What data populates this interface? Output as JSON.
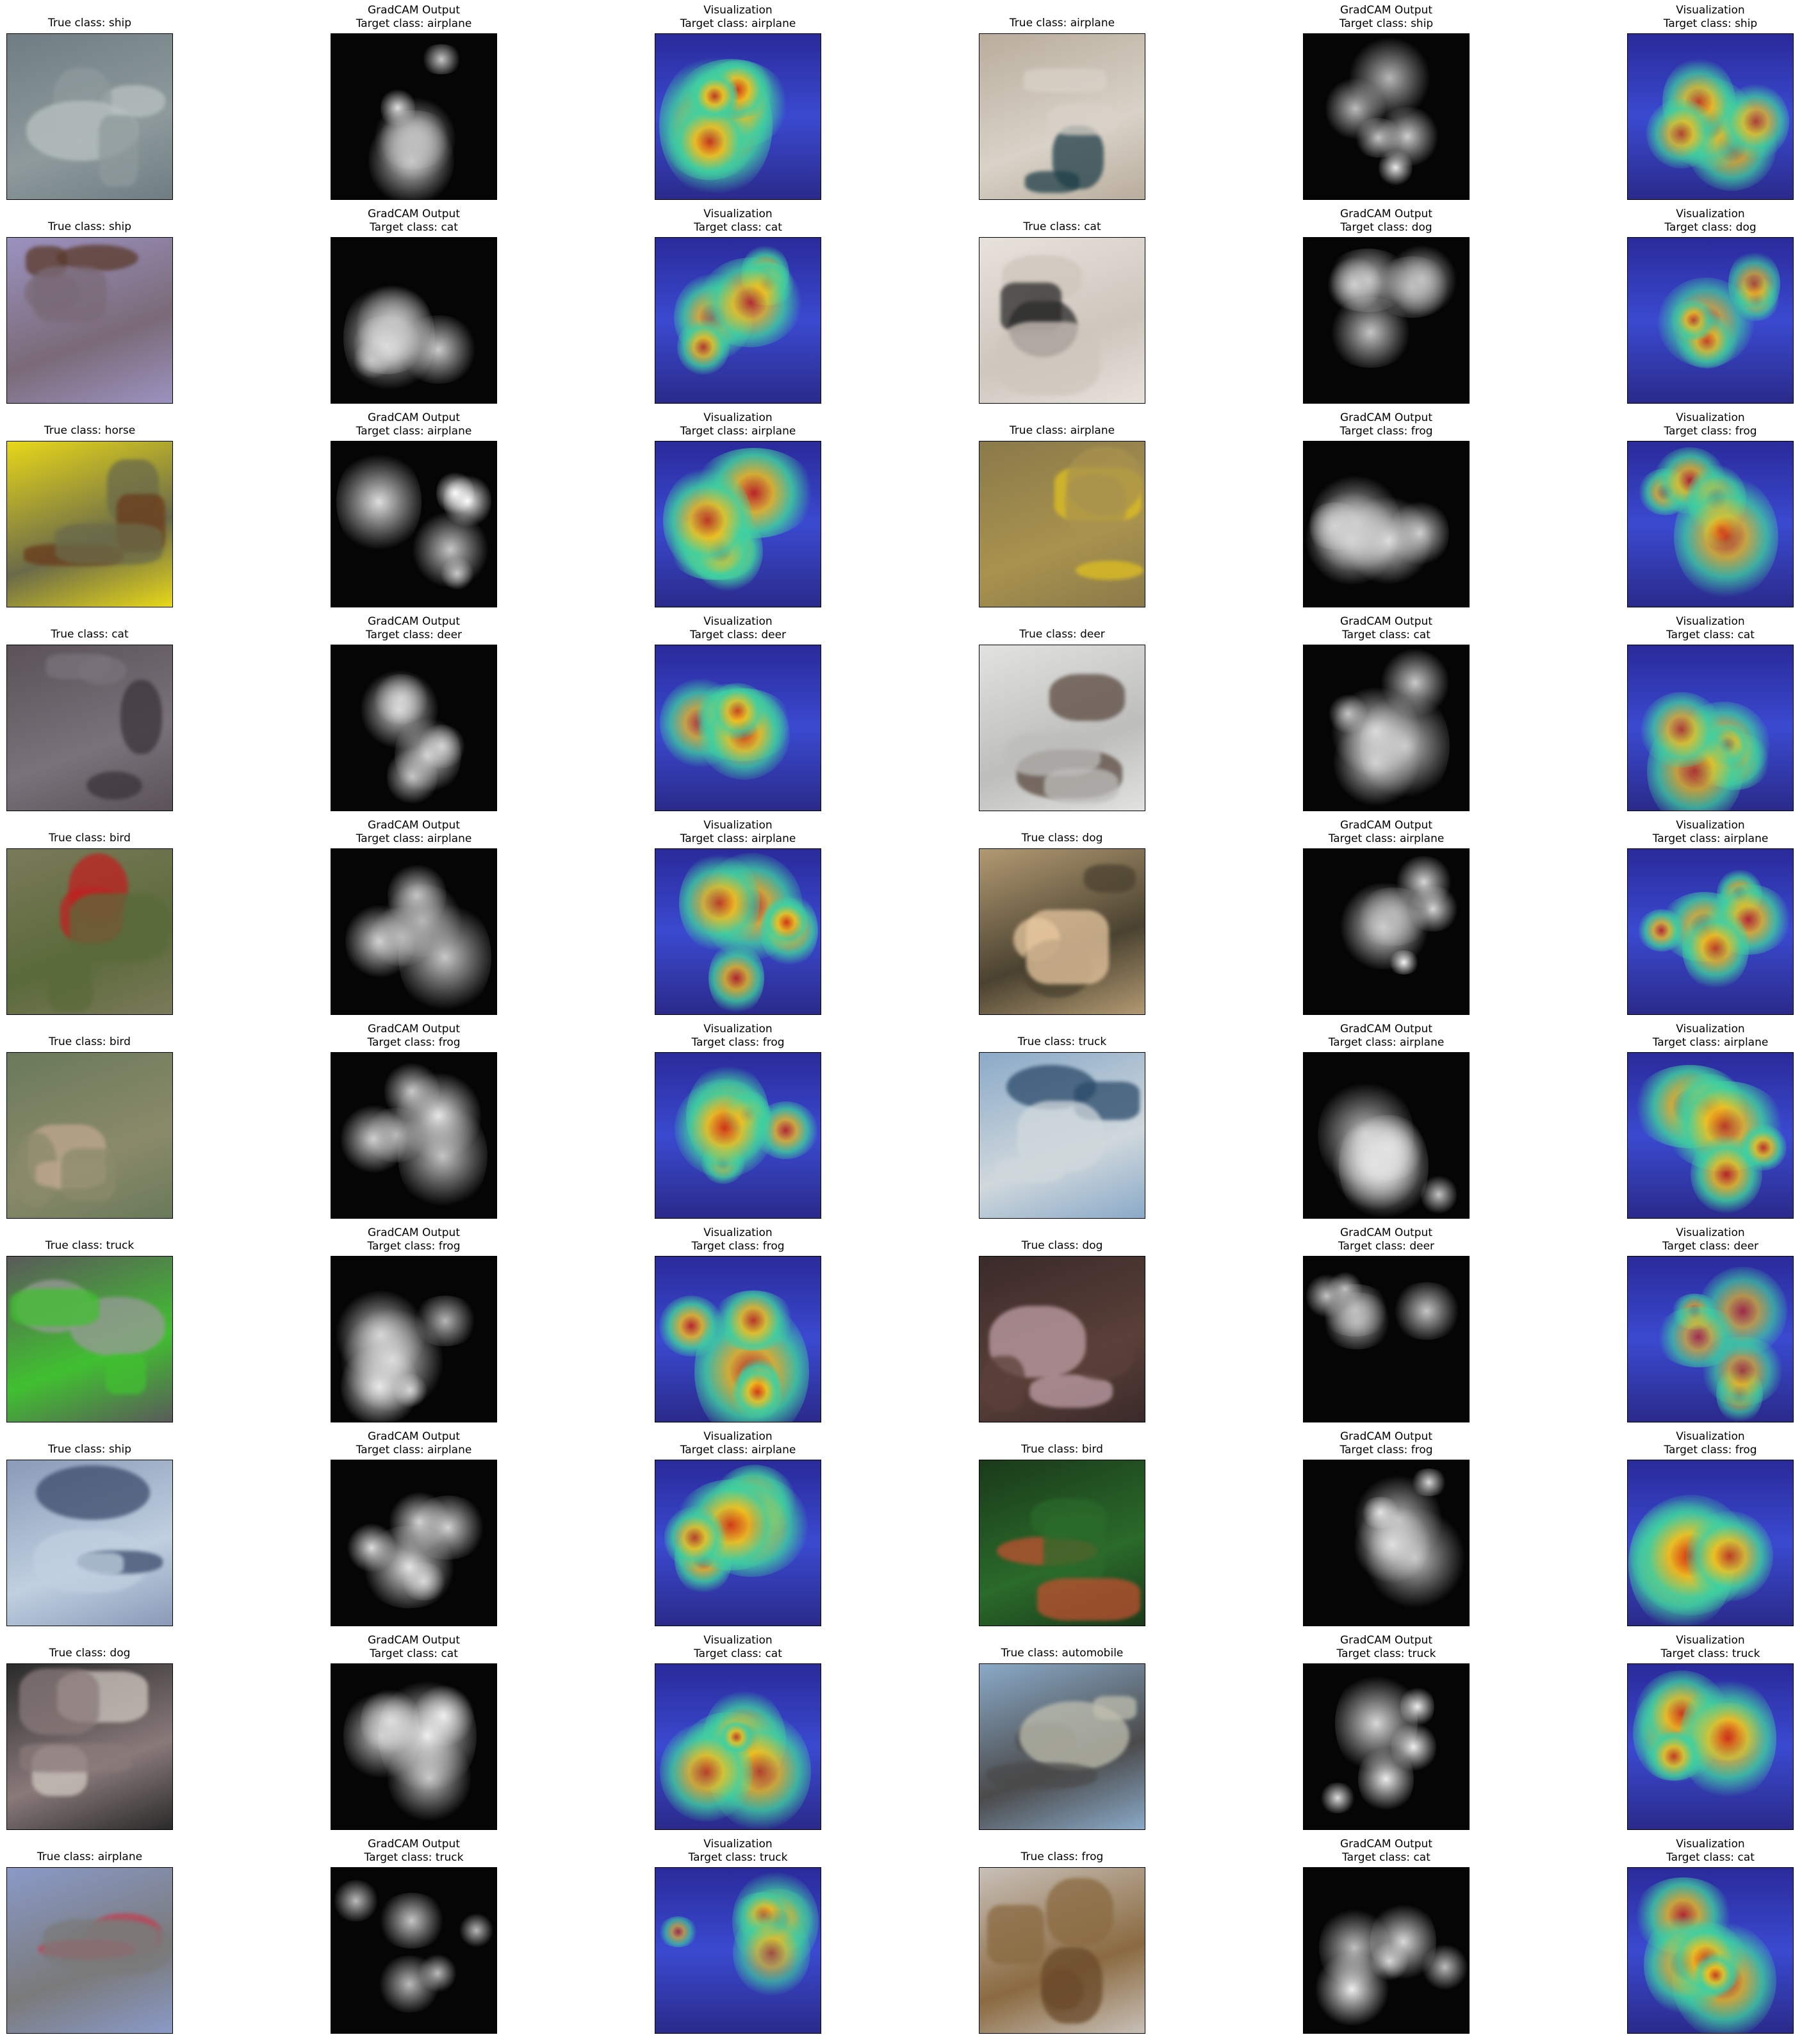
{
  "figure": {
    "rows": [
      [
        {
          "kind": "input",
          "title": "True class: ship",
          "colors": [
            "#6f7d83",
            "#8e9a9c",
            "#b9c2c0"
          ]
        },
        {
          "kind": "gradcam",
          "title": "GradCAM Output",
          "subtitle": "Target class: airplane",
          "intensity": 0.6
        },
        {
          "kind": "visualization",
          "title": "Visualization",
          "subtitle": "Target class: airplane",
          "intensity": 0.7
        },
        {
          "kind": "input",
          "title": "True class: airplane",
          "colors": [
            "#b9ad9c",
            "#d9d2c8",
            "#1f3f49"
          ]
        },
        {
          "kind": "gradcam",
          "title": "GradCAM Output",
          "subtitle": "Target class: ship",
          "intensity": 0.4
        },
        {
          "kind": "visualization",
          "title": "Visualization",
          "subtitle": "Target class: ship",
          "intensity": 0.5
        }
      ],
      [
        {
          "kind": "input",
          "title": "True class: ship",
          "colors": [
            "#9c92c0",
            "#7a6a77",
            "#5a3a2a"
          ]
        },
        {
          "kind": "gradcam",
          "title": "GradCAM Output",
          "subtitle": "Target class: cat",
          "intensity": 0.5
        },
        {
          "kind": "visualization",
          "title": "Visualization",
          "subtitle": "Target class: cat",
          "intensity": 0.6
        },
        {
          "kind": "input",
          "title": "True class: cat",
          "colors": [
            "#e8e2dc",
            "#cfc6bd",
            "#2a2a2a"
          ]
        },
        {
          "kind": "gradcam",
          "title": "GradCAM Output",
          "subtitle": "Target class: dog",
          "intensity": 0.3
        },
        {
          "kind": "visualization",
          "title": "Visualization",
          "subtitle": "Target class: dog",
          "intensity": 0.35
        }
      ],
      [
        {
          "kind": "input",
          "title": "True class: horse",
          "colors": [
            "#e8d818",
            "#6a6a4a",
            "#6a3a1a"
          ]
        },
        {
          "kind": "gradcam",
          "title": "GradCAM Output",
          "subtitle": "Target class: airplane",
          "intensity": 0.55
        },
        {
          "kind": "visualization",
          "title": "Visualization",
          "subtitle": "Target class: airplane",
          "intensity": 0.75
        },
        {
          "kind": "input",
          "title": "True class: airplane",
          "colors": [
            "#8a7a4a",
            "#a8924e",
            "#e0c020"
          ]
        },
        {
          "kind": "gradcam",
          "title": "GradCAM Output",
          "subtitle": "Target class: frog",
          "intensity": 0.4
        },
        {
          "kind": "visualization",
          "title": "Visualization",
          "subtitle": "Target class: frog",
          "intensity": 0.55
        }
      ],
      [
        {
          "kind": "input",
          "title": "True class: cat",
          "colors": [
            "#5a5258",
            "#7a727a",
            "#3a3438"
          ]
        },
        {
          "kind": "gradcam",
          "title": "GradCAM Output",
          "subtitle": "Target class: deer",
          "intensity": 0.35
        },
        {
          "kind": "visualization",
          "title": "Visualization",
          "subtitle": "Target class: deer",
          "intensity": 0.5
        },
        {
          "kind": "input",
          "title": "True class: deer",
          "colors": [
            "#e2e2e0",
            "#bdbdbb",
            "#5a4a40"
          ]
        },
        {
          "kind": "gradcam",
          "title": "GradCAM Output",
          "subtitle": "Target class: cat",
          "intensity": 0.4
        },
        {
          "kind": "visualization",
          "title": "Visualization",
          "subtitle": "Target class: cat",
          "intensity": 0.5
        }
      ],
      [
        {
          "kind": "input",
          "title": "True class: bird",
          "colors": [
            "#7a7a5a",
            "#5a6a3a",
            "#c02020"
          ]
        },
        {
          "kind": "gradcam",
          "title": "GradCAM Output",
          "subtitle": "Target class: airplane",
          "intensity": 0.45
        },
        {
          "kind": "visualization",
          "title": "Visualization",
          "subtitle": "Target class: airplane",
          "intensity": 0.6
        },
        {
          "kind": "input",
          "title": "True class: dog",
          "colors": [
            "#b29a72",
            "#4a4230",
            "#e8c8a0"
          ]
        },
        {
          "kind": "gradcam",
          "title": "GradCAM Output",
          "subtitle": "Target class: airplane",
          "intensity": 0.5
        },
        {
          "kind": "visualization",
          "title": "Visualization",
          "subtitle": "Target class: airplane",
          "intensity": 0.6
        }
      ],
      [
        {
          "kind": "input",
          "title": "True class: bird",
          "colors": [
            "#6a7a5a",
            "#8a8a6a",
            "#c0a890"
          ]
        },
        {
          "kind": "gradcam",
          "title": "GradCAM Output",
          "subtitle": "Target class: frog",
          "intensity": 0.45
        },
        {
          "kind": "visualization",
          "title": "Visualization",
          "subtitle": "Target class: frog",
          "intensity": 0.6
        },
        {
          "kind": "input",
          "title": "True class: truck",
          "colors": [
            "#8aaac8",
            "#d0d8dc",
            "#2a4a6a"
          ]
        },
        {
          "kind": "gradcam",
          "title": "GradCAM Output",
          "subtitle": "Target class: airplane",
          "intensity": 0.6
        },
        {
          "kind": "visualization",
          "title": "Visualization",
          "subtitle": "Target class: airplane",
          "intensity": 0.7
        }
      ],
      [
        {
          "kind": "input",
          "title": "True class: truck",
          "colors": [
            "#5a5a5a",
            "#40c030",
            "#9a9a9a"
          ]
        },
        {
          "kind": "gradcam",
          "title": "GradCAM Output",
          "subtitle": "Target class: frog",
          "intensity": 0.6
        },
        {
          "kind": "visualization",
          "title": "Visualization",
          "subtitle": "Target class: frog",
          "intensity": 0.7
        },
        {
          "kind": "input",
          "title": "True class: dog",
          "colors": [
            "#3a2a2a",
            "#5a4038",
            "#c0a0a8"
          ]
        },
        {
          "kind": "gradcam",
          "title": "GradCAM Output",
          "subtitle": "Target class: deer",
          "intensity": 0.2
        },
        {
          "kind": "visualization",
          "title": "Visualization",
          "subtitle": "Target class: deer",
          "intensity": 0.3
        }
      ],
      [
        {
          "kind": "input",
          "title": "True class: ship",
          "colors": [
            "#8a9ab8",
            "#c0d0e0",
            "#3a4a6a"
          ]
        },
        {
          "kind": "gradcam",
          "title": "GradCAM Output",
          "subtitle": "Target class: airplane",
          "intensity": 0.5
        },
        {
          "kind": "visualization",
          "title": "Visualization",
          "subtitle": "Target class: airplane",
          "intensity": 0.65
        },
        {
          "kind": "input",
          "title": "True class: bird",
          "colors": [
            "#1a3a1a",
            "#2a6a2a",
            "#c05030"
          ]
        },
        {
          "kind": "gradcam",
          "title": "GradCAM Output",
          "subtitle": "Target class: frog",
          "intensity": 0.55
        },
        {
          "kind": "visualization",
          "title": "Visualization",
          "subtitle": "Target class: frog",
          "intensity": 0.7
        }
      ],
      [
        {
          "kind": "input",
          "title": "True class: dog",
          "colors": [
            "#2a2a2a",
            "#8a7a7a",
            "#d0c8c0"
          ]
        },
        {
          "kind": "gradcam",
          "title": "GradCAM Output",
          "subtitle": "Target class: cat",
          "intensity": 0.45
        },
        {
          "kind": "visualization",
          "title": "Visualization",
          "subtitle": "Target class: cat",
          "intensity": 0.6
        },
        {
          "kind": "input",
          "title": "True class: automobile",
          "colors": [
            "#8aaac8",
            "#4a4a4a",
            "#c0c0b0"
          ]
        },
        {
          "kind": "gradcam",
          "title": "GradCAM Output",
          "subtitle": "Target class: truck",
          "intensity": 0.5
        },
        {
          "kind": "visualization",
          "title": "Visualization",
          "subtitle": "Target class: truck",
          "intensity": 0.6
        }
      ],
      [
        {
          "kind": "input",
          "title": "True class: airplane",
          "colors": [
            "#8a9ac8",
            "#7a7a7a",
            "#c04050"
          ]
        },
        {
          "kind": "gradcam",
          "title": "GradCAM Output",
          "subtitle": "Target class: truck",
          "intensity": 0.15
        },
        {
          "kind": "visualization",
          "title": "Visualization",
          "subtitle": "Target class: truck",
          "intensity": 0.25
        },
        {
          "kind": "input",
          "title": "True class: frog",
          "colors": [
            "#c8c0b8",
            "#8a6a40",
            "#6a4a2a"
          ]
        },
        {
          "kind": "gradcam",
          "title": "GradCAM Output",
          "subtitle": "Target class: cat",
          "intensity": 0.45
        },
        {
          "kind": "visualization",
          "title": "Visualization",
          "subtitle": "Target class: cat",
          "intensity": 0.6
        }
      ]
    ]
  }
}
